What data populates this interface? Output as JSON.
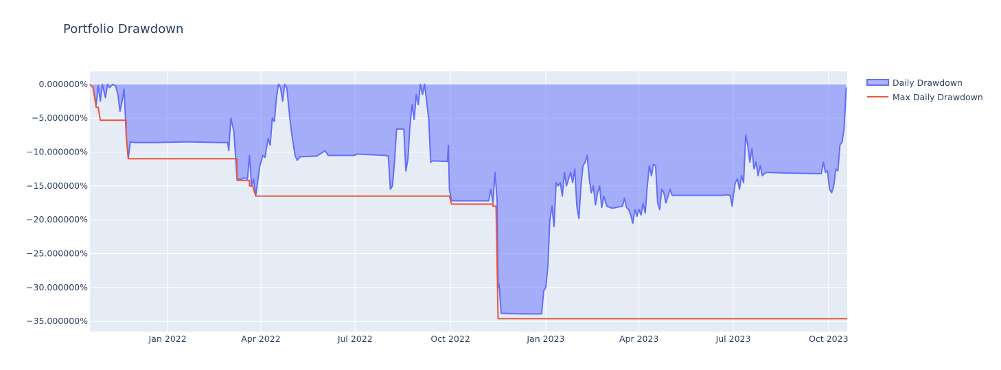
{
  "chart_data": {
    "type": "area",
    "title": "Portfolio Drawdown",
    "xlabel": "",
    "ylabel": "",
    "x_range": [
      "2021-10-18",
      "2023-10-19"
    ],
    "y_range": [
      -36.5,
      1.9
    ],
    "x_ticks": [
      {
        "date": "2022-01-01",
        "label": "Jan 2022"
      },
      {
        "date": "2022-04-01",
        "label": "Apr 2022"
      },
      {
        "date": "2022-07-01",
        "label": "Jul 2022"
      },
      {
        "date": "2022-10-01",
        "label": "Oct 2022"
      },
      {
        "date": "2023-01-01",
        "label": "Jan 2023"
      },
      {
        "date": "2023-04-01",
        "label": "Apr 2023"
      },
      {
        "date": "2023-07-01",
        "label": "Jul 2023"
      },
      {
        "date": "2023-10-01",
        "label": "Oct 2023"
      }
    ],
    "y_ticks": [
      {
        "value": 0,
        "label": "0.000000%"
      },
      {
        "value": -5,
        "label": "−5.000000%"
      },
      {
        "value": -10,
        "label": "−10.000000%"
      },
      {
        "value": -15,
        "label": "−15.000000%"
      },
      {
        "value": -20,
        "label": "−20.000000%"
      },
      {
        "value": -25,
        "label": "−25.000000%"
      },
      {
        "value": -30,
        "label": "−30.000000%"
      },
      {
        "value": -35,
        "label": "−35.000000%"
      }
    ],
    "grid": true,
    "legend_position": "top-right",
    "series": [
      {
        "name": "Daily Drawdown",
        "type": "area",
        "color": "#636efa",
        "fill": "rgba(99,110,250,0.5)",
        "points": [
          [
            "2021-10-18",
            0.0
          ],
          [
            "2021-10-21",
            -0.5
          ],
          [
            "2021-10-24",
            -3.0
          ],
          [
            "2021-10-26",
            -0.2
          ],
          [
            "2021-10-28",
            -2.5
          ],
          [
            "2021-10-30",
            0.0
          ],
          [
            "2021-11-02",
            -2.0
          ],
          [
            "2021-11-04",
            0.0
          ],
          [
            "2021-11-06",
            -0.5
          ],
          [
            "2021-11-09",
            0.0
          ],
          [
            "2021-11-12",
            -0.3
          ],
          [
            "2021-11-14",
            -1.5
          ],
          [
            "2021-11-16",
            -4.0
          ],
          [
            "2021-11-18",
            -2.5
          ],
          [
            "2021-11-20",
            -0.7
          ],
          [
            "2021-11-22",
            -7.5
          ],
          [
            "2021-11-24",
            -11.0
          ],
          [
            "2021-11-26",
            -8.5
          ],
          [
            "2021-12-01",
            -8.6
          ],
          [
            "2021-12-20",
            -8.6
          ],
          [
            "2022-01-20",
            -8.5
          ],
          [
            "2022-02-20",
            -8.6
          ],
          [
            "2022-02-28",
            -8.6
          ],
          [
            "2022-03-01",
            -9.8
          ],
          [
            "2022-03-03",
            -5.0
          ],
          [
            "2022-03-06",
            -7.0
          ],
          [
            "2022-03-09",
            -14.0
          ],
          [
            "2022-03-14",
            -14.0
          ],
          [
            "2022-03-16",
            -13.8
          ],
          [
            "2022-03-19",
            -14.0
          ],
          [
            "2022-03-21",
            -10.5
          ],
          [
            "2022-03-23",
            -15.0
          ],
          [
            "2022-03-25",
            -14.0
          ],
          [
            "2022-03-27",
            -16.5
          ],
          [
            "2022-03-31",
            -12.0
          ],
          [
            "2022-04-03",
            -10.5
          ],
          [
            "2022-04-05",
            -10.8
          ],
          [
            "2022-04-08",
            -8.0
          ],
          [
            "2022-04-10",
            -9.0
          ],
          [
            "2022-04-12",
            -5.0
          ],
          [
            "2022-04-14",
            -5.5
          ],
          [
            "2022-04-16",
            -2.0
          ],
          [
            "2022-04-18",
            0.0
          ],
          [
            "2022-04-20",
            -0.5
          ],
          [
            "2022-04-22",
            -2.5
          ],
          [
            "2022-04-24",
            0.0
          ],
          [
            "2022-04-26",
            -0.5
          ],
          [
            "2022-04-29",
            -5.0
          ],
          [
            "2022-05-01",
            -7.5
          ],
          [
            "2022-05-04",
            -10.5
          ],
          [
            "2022-05-06",
            -11.2
          ],
          [
            "2022-05-09",
            -10.7
          ],
          [
            "2022-05-25",
            -10.6
          ],
          [
            "2022-06-02",
            -9.8
          ],
          [
            "2022-06-05",
            -10.5
          ],
          [
            "2022-06-30",
            -10.5
          ],
          [
            "2022-07-03",
            -10.3
          ],
          [
            "2022-07-30",
            -10.5
          ],
          [
            "2022-08-02",
            -10.6
          ],
          [
            "2022-08-04",
            -15.5
          ],
          [
            "2022-08-06",
            -15.0
          ],
          [
            "2022-08-08",
            -11.5
          ],
          [
            "2022-08-10",
            -6.6
          ],
          [
            "2022-08-17",
            -6.6
          ],
          [
            "2022-08-19",
            -12.8
          ],
          [
            "2022-08-21",
            -11.0
          ],
          [
            "2022-08-23",
            -6.0
          ],
          [
            "2022-08-25",
            -3.0
          ],
          [
            "2022-08-27",
            -5.2
          ],
          [
            "2022-08-29",
            -1.5
          ],
          [
            "2022-08-31",
            -3.0
          ],
          [
            "2022-09-02",
            0.0
          ],
          [
            "2022-09-04",
            -1.5
          ],
          [
            "2022-09-06",
            0.0
          ],
          [
            "2022-09-08",
            -2.5
          ],
          [
            "2022-09-10",
            -5.0
          ],
          [
            "2022-09-12",
            -11.5
          ],
          [
            "2022-09-14",
            -11.3
          ],
          [
            "2022-09-28",
            -11.4
          ],
          [
            "2022-09-29",
            -9.0
          ],
          [
            "2022-09-30",
            -15.5
          ],
          [
            "2022-10-02",
            -17.2
          ],
          [
            "2022-10-10",
            -17.2
          ],
          [
            "2022-11-07",
            -17.2
          ],
          [
            "2022-11-09",
            -15.5
          ],
          [
            "2022-11-11",
            -17.5
          ],
          [
            "2022-11-13",
            -13.0
          ],
          [
            "2022-11-15",
            -17.0
          ],
          [
            "2022-11-16",
            -30.0
          ],
          [
            "2022-11-17",
            -29.5
          ],
          [
            "2022-11-19",
            -33.8
          ],
          [
            "2022-12-10",
            -33.9
          ],
          [
            "2022-12-28",
            -33.9
          ],
          [
            "2022-12-30",
            -30.5
          ],
          [
            "2023-01-01",
            -30.0
          ],
          [
            "2023-01-03",
            -27.0
          ],
          [
            "2023-01-05",
            -20.0
          ],
          [
            "2023-01-07",
            -18.0
          ],
          [
            "2023-01-09",
            -21.0
          ],
          [
            "2023-01-11",
            -14.5
          ],
          [
            "2023-01-13",
            -15.0
          ],
          [
            "2023-01-15",
            -14.5
          ],
          [
            "2023-01-17",
            -16.5
          ],
          [
            "2023-01-19",
            -13.0
          ],
          [
            "2023-01-21",
            -15.0
          ],
          [
            "2023-01-23",
            -14.0
          ],
          [
            "2023-01-25",
            -13.0
          ],
          [
            "2023-01-27",
            -14.5
          ],
          [
            "2023-01-29",
            -12.5
          ],
          [
            "2023-01-31",
            -18.0
          ],
          [
            "2023-02-02",
            -19.8
          ],
          [
            "2023-02-04",
            -15.0
          ],
          [
            "2023-02-06",
            -12.0
          ],
          [
            "2023-02-08",
            -11.5
          ],
          [
            "2023-02-10",
            -10.5
          ],
          [
            "2023-02-12",
            -14.0
          ],
          [
            "2023-02-14",
            -16.0
          ],
          [
            "2023-02-16",
            -15.0
          ],
          [
            "2023-02-18",
            -17.8
          ],
          [
            "2023-02-20",
            -16.0
          ],
          [
            "2023-02-22",
            -15.0
          ],
          [
            "2023-02-24",
            -18.2
          ],
          [
            "2023-02-26",
            -16.5
          ],
          [
            "2023-03-01",
            -18.0
          ],
          [
            "2023-03-06",
            -18.3
          ],
          [
            "2023-03-16",
            -18.0
          ],
          [
            "2023-03-18",
            -16.8
          ],
          [
            "2023-03-20",
            -18.2
          ],
          [
            "2023-03-22",
            -18.5
          ],
          [
            "2023-03-24",
            -19.2
          ],
          [
            "2023-03-26",
            -20.5
          ],
          [
            "2023-03-28",
            -18.5
          ],
          [
            "2023-03-30",
            -19.5
          ],
          [
            "2023-04-01",
            -18.5
          ],
          [
            "2023-04-03",
            -19.3
          ],
          [
            "2023-04-05",
            -17.6
          ],
          [
            "2023-04-07",
            -19.0
          ],
          [
            "2023-04-09",
            -15.0
          ],
          [
            "2023-04-11",
            -12.0
          ],
          [
            "2023-04-13",
            -13.5
          ],
          [
            "2023-04-15",
            -11.8
          ],
          [
            "2023-04-17",
            -12.0
          ],
          [
            "2023-04-19",
            -17.5
          ],
          [
            "2023-04-21",
            -18.5
          ],
          [
            "2023-04-23",
            -15.5
          ],
          [
            "2023-04-25",
            -16.0
          ],
          [
            "2023-04-27",
            -17.5
          ],
          [
            "2023-04-29",
            -16.5
          ],
          [
            "2023-05-01",
            -15.5
          ],
          [
            "2023-05-03",
            -16.4
          ],
          [
            "2023-05-20",
            -16.4
          ],
          [
            "2023-06-20",
            -16.4
          ],
          [
            "2023-06-25",
            -16.3
          ],
          [
            "2023-06-28",
            -16.4
          ],
          [
            "2023-06-30",
            -18.0
          ],
          [
            "2023-07-01",
            -16.5
          ],
          [
            "2023-07-03",
            -14.5
          ],
          [
            "2023-07-05",
            -14.0
          ],
          [
            "2023-07-07",
            -15.5
          ],
          [
            "2023-07-09",
            -13.5
          ],
          [
            "2023-07-11",
            -14.5
          ],
          [
            "2023-07-13",
            -7.5
          ],
          [
            "2023-07-15",
            -9.0
          ],
          [
            "2023-07-17",
            -11.5
          ],
          [
            "2023-07-19",
            -9.5
          ],
          [
            "2023-07-21",
            -12.5
          ],
          [
            "2023-07-23",
            -11.5
          ],
          [
            "2023-07-25",
            -13.5
          ],
          [
            "2023-07-27",
            -12.0
          ],
          [
            "2023-07-29",
            -13.5
          ],
          [
            "2023-07-31",
            -13.2
          ],
          [
            "2023-08-02",
            -13.0
          ],
          [
            "2023-08-20",
            -13.1
          ],
          [
            "2023-09-20",
            -13.2
          ],
          [
            "2023-09-24",
            -13.2
          ],
          [
            "2023-09-26",
            -11.5
          ],
          [
            "2023-09-28",
            -13.0
          ],
          [
            "2023-09-30",
            -12.8
          ],
          [
            "2023-10-02",
            -15.5
          ],
          [
            "2023-10-04",
            -16.0
          ],
          [
            "2023-10-06",
            -15.0
          ],
          [
            "2023-10-08",
            -12.5
          ],
          [
            "2023-10-10",
            -12.8
          ],
          [
            "2023-10-12",
            -9.0
          ],
          [
            "2023-10-14",
            -8.5
          ],
          [
            "2023-10-16",
            -6.5
          ],
          [
            "2023-10-18",
            -0.5
          ]
        ]
      },
      {
        "name": "Max Daily Drawdown",
        "type": "line",
        "color": "#ef553b",
        "points": [
          [
            "2021-10-18",
            0.0
          ],
          [
            "2021-10-21",
            -0.5
          ],
          [
            "2021-10-24",
            -3.4
          ],
          [
            "2021-10-26",
            -3.4
          ],
          [
            "2021-10-28",
            -5.3
          ],
          [
            "2021-11-22",
            -5.3
          ],
          [
            "2021-11-22",
            -7.5
          ],
          [
            "2021-11-24",
            -11.0
          ],
          [
            "2022-03-09",
            -11.0
          ],
          [
            "2022-03-09",
            -14.2
          ],
          [
            "2022-03-21",
            -14.2
          ],
          [
            "2022-03-21",
            -15.0
          ],
          [
            "2022-03-24",
            -15.0
          ],
          [
            "2022-03-27",
            -16.5
          ],
          [
            "2022-09-30",
            -16.5
          ],
          [
            "2022-10-02",
            -17.7
          ],
          [
            "2022-11-11",
            -17.7
          ],
          [
            "2022-11-11",
            -18.0
          ],
          [
            "2022-11-14",
            -18.0
          ],
          [
            "2022-11-16",
            -34.6
          ],
          [
            "2023-10-19",
            -34.6
          ]
        ]
      }
    ]
  }
}
